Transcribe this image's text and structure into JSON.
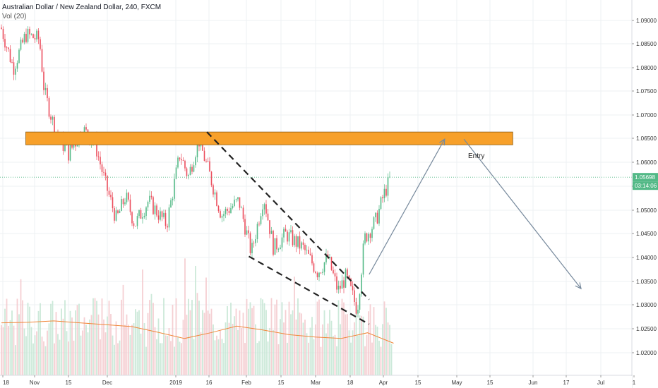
{
  "header": {
    "title": "Australian Dollar / New Zealand Dollar, 240, FXCM",
    "volume_label": "Vol (20)"
  },
  "annotations": {
    "entry_label": "Entry"
  },
  "price_tags": {
    "last_price": "1.05698",
    "countdown": "03:14:06"
  },
  "colors": {
    "up": "#53b987",
    "down": "#eb4d5c",
    "zone_fill": "#f7a02a",
    "zone_border": "#8a5a10",
    "arrow": "#76899c",
    "ma_line": "#f0873a",
    "last_price_line": "#53b987",
    "grid": "#eef0f3",
    "axis_border": "#d9dbe0"
  },
  "chart_data": {
    "type": "candlestick",
    "title": "Australian Dollar / New Zealand Dollar, 240, FXCM",
    "x_tick_labels": [
      "18",
      "Nov",
      "15",
      "Dec",
      "2019",
      "16",
      "Feb",
      "15",
      "Mar",
      "18",
      "Apr",
      "15",
      "May",
      "15",
      "Jun",
      "17",
      "Jul",
      "1"
    ],
    "y_tick_labels": [
      "1.09000",
      "1.08500",
      "1.08000",
      "1.07500",
      "1.07000",
      "1.06500",
      "1.06000",
      "1.05500",
      "1.05000",
      "1.04500",
      "1.04000",
      "1.03500",
      "1.03000",
      "1.02500",
      "1.02000"
    ],
    "ylim": [
      1.0165,
      1.0925
    ],
    "grid": true,
    "price_path": [
      {
        "t": "Oct 18",
        "close": 1.0885
      },
      {
        "t": "Oct 25",
        "close": 1.08
      },
      {
        "t": "Nov 1",
        "close": 1.087
      },
      {
        "t": "Nov 8",
        "close": 1.086
      },
      {
        "t": "Nov 10",
        "close": 1.075
      },
      {
        "t": "Nov 15",
        "close": 1.066
      },
      {
        "t": "Nov 20",
        "close": 1.062
      },
      {
        "t": "Nov 26",
        "close": 1.067
      },
      {
        "t": "Dec 1",
        "close": 1.064
      },
      {
        "t": "Dec 5",
        "close": 1.056
      },
      {
        "t": "Dec 10",
        "close": 1.048
      },
      {
        "t": "Dec 14",
        "close": 1.053
      },
      {
        "t": "Dec 18",
        "close": 1.047
      },
      {
        "t": "Dec 24",
        "close": 1.052
      },
      {
        "t": "Jan 2",
        "close": 1.047
      },
      {
        "t": "Jan 8",
        "close": 1.062
      },
      {
        "t": "Jan 12",
        "close": 1.057
      },
      {
        "t": "Jan 17",
        "close": 1.065
      },
      {
        "t": "Jan 22",
        "close": 1.058
      },
      {
        "t": "Jan 27",
        "close": 1.049
      },
      {
        "t": "Feb 3",
        "close": 1.052
      },
      {
        "t": "Feb 8",
        "close": 1.041
      },
      {
        "t": "Feb 13",
        "close": 1.053
      },
      {
        "t": "Feb 17",
        "close": 1.042
      },
      {
        "t": "Feb 22",
        "close": 1.045
      },
      {
        "t": "Mar 1",
        "close": 1.042
      },
      {
        "t": "Mar 7",
        "close": 1.037
      },
      {
        "t": "Mar 12",
        "close": 1.04
      },
      {
        "t": "Mar 17",
        "close": 1.033
      },
      {
        "t": "Mar 21",
        "close": 1.036
      },
      {
        "t": "Mar 26",
        "close": 1.029
      },
      {
        "t": "Mar 29",
        "close": 1.044
      },
      {
        "t": "Apr 3",
        "close": 1.048
      },
      {
        "t": "Apr 6",
        "close": 1.053
      },
      {
        "t": "Apr 9",
        "close": 1.057
      }
    ],
    "volume_ma_path": [
      1.0263,
      1.0264,
      1.0267,
      1.0263,
      1.0259,
      1.0255,
      1.0243,
      1.023,
      1.0242,
      1.0256,
      1.0248,
      1.0238,
      1.0233,
      1.023,
      1.0242,
      1.022
    ],
    "resistance_zone": {
      "top": 1.0665,
      "bottom": 1.0638,
      "from": "Nov 1",
      "to": "May 29"
    },
    "channel_upper": {
      "from": {
        "t": "Jan 21",
        "price": 1.0665
      },
      "to": {
        "t": "Mar 31",
        "price": 1.0312
      }
    },
    "channel_lower": {
      "from": {
        "t": "Feb 7",
        "price": 1.0403
      },
      "to": {
        "t": "Mar 31",
        "price": 1.026
      }
    },
    "forecast_arrows": [
      {
        "from": {
          "t": "Mar 31",
          "price": 1.0365
        },
        "to": {
          "t": "May 1",
          "price": 1.065
        }
      },
      {
        "from": {
          "t": "May 9",
          "price": 1.065
        },
        "to": {
          "t": "Jun 28",
          "price": 1.0335
        }
      }
    ],
    "last_price": 1.05698
  }
}
